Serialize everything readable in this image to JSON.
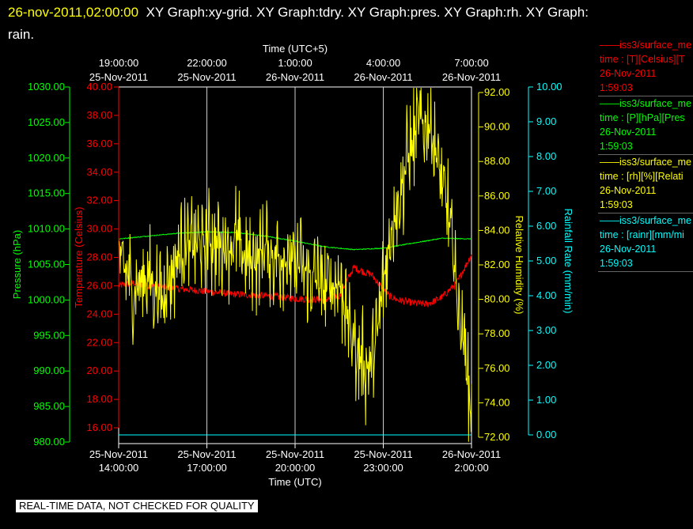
{
  "header": {
    "timestamp": "26-nov-2011,02:00:00",
    "graphs_line1": "XY Graph:xy-grid.  XY Graph:tdry.  XY Graph:pres.  XY Graph:rh.  XY Graph:",
    "graphs_line2": "rain."
  },
  "footer": {
    "quality_note": "REAL-TIME DATA, NOT CHECKED FOR QUALITY"
  },
  "colors": {
    "tdry": "#ff0000",
    "pres": "#00ff00",
    "rh": "#ffff00",
    "rain": "#00ffff",
    "grid": "#cccccc"
  },
  "legend": [
    {
      "line1": "——iss3/surface_me",
      "line2": "time : [T][Celsius][T",
      "line3": "26-Nov-2011",
      "line4": "1:59:03",
      "color": "#ff0000"
    },
    {
      "line1": "——iss3/surface_me",
      "line2": "time : [P][hPa][Pres",
      "line3": "26-Nov-2011",
      "line4": "1:59:03",
      "color": "#00ff00"
    },
    {
      "line1": "——iss3/surface_me",
      "line2": "time : [rh][%][Relati",
      "line3": "26-Nov-2011",
      "line4": "1:59:03",
      "color": "#ffff00"
    },
    {
      "line1": "——iss3/surface_me",
      "line2": "time : [rainr][mm/mi",
      "line3": "26-Nov-2011",
      "line4": "1:59:03",
      "color": "#00ffff"
    }
  ],
  "chart_data": {
    "type": "line",
    "top_axis": {
      "label": "Time (UTC+5)",
      "ticks": [
        {
          "time": "19:00:00",
          "date": "25-Nov-2011"
        },
        {
          "time": "22:00:00",
          "date": "25-Nov-2011"
        },
        {
          "time": "1:00:00",
          "date": "26-Nov-2011"
        },
        {
          "time": "4:00:00",
          "date": "26-Nov-2011"
        },
        {
          "time": "7:00:00",
          "date": "26-Nov-2011"
        }
      ]
    },
    "bottom_axis": {
      "label": "Time (UTC)",
      "range": [
        "25-Nov-2011 14:00:00",
        "26-Nov-2011 02:00:00"
      ],
      "ticks": [
        {
          "date": "25-Nov-2011",
          "time": "14:00:00"
        },
        {
          "date": "25-Nov-2011",
          "time": "17:00:00"
        },
        {
          "date": "25-Nov-2011",
          "time": "20:00:00"
        },
        {
          "date": "25-Nov-2011",
          "time": "23:00:00"
        },
        {
          "date": "26-Nov-2011",
          "time": "2:00:00"
        }
      ]
    },
    "y_pressure": {
      "label": "Pressure (hPa)",
      "color": "#00ff00",
      "min": 980,
      "max": 1030,
      "ticks": [
        "1030.00",
        "1025.00",
        "1020.00",
        "1015.00",
        "1010.00",
        "1005.00",
        "1000.00",
        "995.00",
        "990.00",
        "985.00",
        "980.00"
      ]
    },
    "y_temperature": {
      "label": "Temperature (Celsius)",
      "color": "#ff0000",
      "min": 15,
      "max": 40,
      "ticks": [
        "40.00",
        "38.00",
        "36.00",
        "34.00",
        "32.00",
        "30.00",
        "28.00",
        "26.00",
        "24.00",
        "22.00",
        "20.00",
        "18.00",
        "16.00"
      ]
    },
    "y_rh": {
      "label": "Relative Humidity (%)",
      "color": "#ffff00",
      "min": 72,
      "max": 92,
      "ticks": [
        "92.00",
        "90.00",
        "88.00",
        "86.00",
        "84.00",
        "82.00",
        "80.00",
        "78.00",
        "76.00",
        "74.00",
        "72.00"
      ]
    },
    "y_rain": {
      "label": "Rainfall Rate (mm/min)",
      "color": "#00ffff",
      "min": 0,
      "max": 10,
      "ticks": [
        "10.00",
        "9.00",
        "8.00",
        "7.00",
        "6.00",
        "5.00",
        "4.00",
        "3.00",
        "2.00",
        "1.00",
        "0.00"
      ]
    },
    "series": [
      {
        "name": "tdry",
        "axis": "temperature",
        "color": "#ff0000",
        "noise": 0.25,
        "x": [
          0,
          0.5,
          1,
          2,
          3,
          4,
          5,
          6,
          7,
          7.5,
          7.8,
          8.0,
          8.3,
          8.6,
          8.9,
          9.2,
          9.5,
          10,
          10.5,
          11,
          11.5,
          12
        ],
        "y": [
          26.0,
          26.2,
          26.0,
          25.8,
          25.6,
          25.4,
          25.3,
          25.1,
          25.0,
          25.3,
          26.5,
          27.3,
          27.0,
          26.8,
          26.0,
          25.3,
          25.0,
          24.8,
          24.7,
          25.2,
          26.2,
          28.2
        ]
      },
      {
        "name": "pres",
        "axis": "pressure",
        "color": "#00ff00",
        "noise": 0.06,
        "x": [
          0,
          1,
          2,
          3,
          4,
          5,
          6,
          7,
          8,
          9,
          10,
          11,
          12
        ],
        "y": [
          1008.6,
          1009.0,
          1009.4,
          1009.6,
          1009.5,
          1009.0,
          1008.3,
          1007.5,
          1007.1,
          1007.3,
          1008.0,
          1008.7,
          1008.6
        ]
      },
      {
        "name": "rh",
        "axis": "rh",
        "color": "#ffff00",
        "noise": 2.0,
        "x": [
          0,
          0.5,
          1,
          1.5,
          2,
          2.5,
          3,
          3.5,
          4,
          4.5,
          5,
          5.5,
          6,
          6.5,
          7,
          7.5,
          7.8,
          8.1,
          8.4,
          8.7,
          9.0,
          9.3,
          9.6,
          9.9,
          10.2,
          10.5,
          10.8,
          11.0,
          11.2,
          11.4,
          11.6,
          11.8,
          12.0
        ],
        "y": [
          82.5,
          80.5,
          81.5,
          80.0,
          82.5,
          83.0,
          83.5,
          83.0,
          83.5,
          82.0,
          83.0,
          82.5,
          82.0,
          81.5,
          80.5,
          81.0,
          79.0,
          77.0,
          76.0,
          76.5,
          81.0,
          84.5,
          86.5,
          88.5,
          90.0,
          90.5,
          88.5,
          86.5,
          85.0,
          82.0,
          79.0,
          76.5,
          73.0
        ]
      },
      {
        "name": "rainr",
        "axis": "rain",
        "color": "#00ffff",
        "noise": 0,
        "x": [
          0,
          12
        ],
        "y": [
          0.0,
          0.0
        ]
      }
    ]
  }
}
